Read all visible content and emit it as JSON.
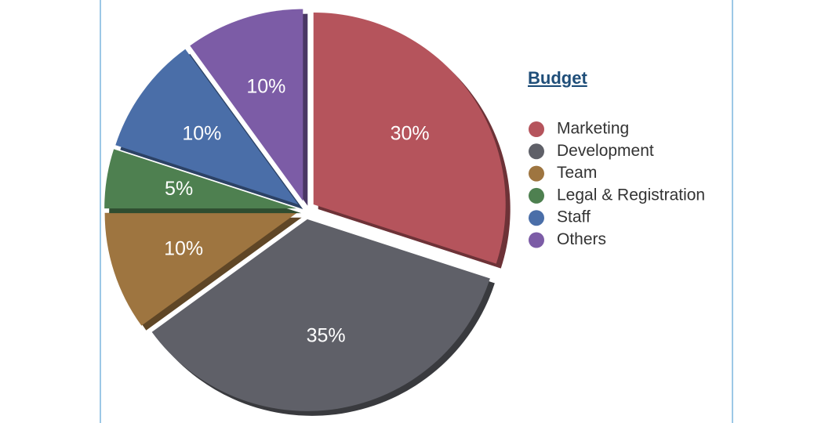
{
  "chart_data": {
    "type": "pie",
    "legend_title": "Budget",
    "categories": [
      "Marketing",
      "Development",
      "Team",
      "Legal & Registration",
      "Staff",
      "Others"
    ],
    "values": [
      30,
      35,
      10,
      5,
      10,
      10
    ],
    "value_labels": [
      "30%",
      "35%",
      "10%",
      "5%",
      "10%",
      "10%"
    ],
    "colors": [
      "#b5545c",
      "#5f6068",
      "#9e7540",
      "#4e8050",
      "#4a6ea8",
      "#7c5ca6"
    ],
    "legend": "right"
  }
}
